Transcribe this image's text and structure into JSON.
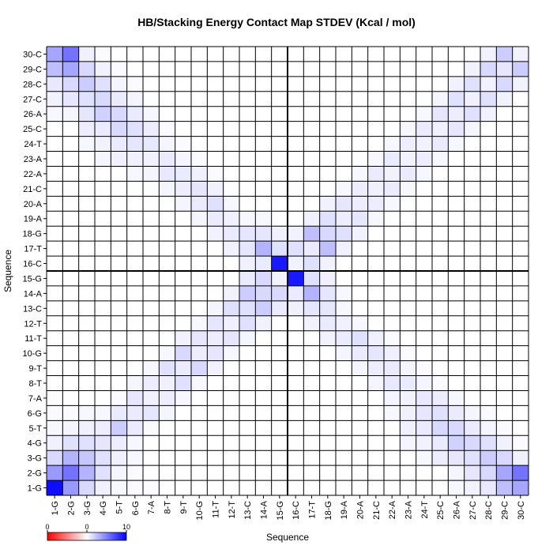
{
  "chart_data": {
    "type": "heatmap",
    "title": "HB/Stacking Energy Contact Map STDEV (Kcal / mol)",
    "xlabel": "Sequence",
    "ylabel": "Sequence",
    "labels": [
      "1-G",
      "2-G",
      "3-G",
      "4-G",
      "5-T",
      "6-G",
      "7-A",
      "8-T",
      "9-T",
      "10-G",
      "11-T",
      "12-T",
      "13-C",
      "14-A",
      "15-G",
      "16-C",
      "17-T",
      "18-G",
      "19-A",
      "20-A",
      "21-C",
      "22-A",
      "23-A",
      "24-T",
      "25-C",
      "26-A",
      "27-C",
      "28-C",
      "29-C",
      "30-C"
    ],
    "colorbar": {
      "min": 0,
      "mid": 0,
      "max": 10,
      "tick_labels": [
        "0",
        "0",
        "10"
      ],
      "colors": [
        "#ff0000",
        "#ffffff",
        "#0000ff"
      ]
    },
    "divider_after_index": 15,
    "grid": true,
    "cells": [
      [
        1,
        1,
        9.5
      ],
      [
        1,
        2,
        4.0
      ],
      [
        1,
        3,
        1.5
      ],
      [
        1,
        4,
        0.6
      ],
      [
        1,
        5,
        0.3
      ],
      [
        1,
        6,
        0.2
      ],
      [
        1,
        7,
        0.1
      ],
      [
        1,
        26,
        0.3
      ],
      [
        1,
        27,
        0.5
      ],
      [
        1,
        28,
        0.9
      ],
      [
        1,
        29,
        2.5
      ],
      [
        1,
        30,
        3.5
      ],
      [
        2,
        2,
        5.5
      ],
      [
        2,
        3,
        3.0
      ],
      [
        2,
        4,
        1.2
      ],
      [
        2,
        5,
        0.4
      ],
      [
        2,
        6,
        0.2
      ],
      [
        2,
        26,
        0.4
      ],
      [
        2,
        27,
        1.0
      ],
      [
        2,
        28,
        1.5
      ],
      [
        2,
        29,
        3.5
      ],
      [
        2,
        30,
        5.5
      ],
      [
        3,
        3,
        2.2
      ],
      [
        3,
        4,
        1.2
      ],
      [
        3,
        5,
        0.6
      ],
      [
        3,
        6,
        0.3
      ],
      [
        3,
        24,
        0.3
      ],
      [
        3,
        25,
        0.7
      ],
      [
        3,
        26,
        1.0
      ],
      [
        3,
        27,
        1.2
      ],
      [
        3,
        28,
        2.0
      ],
      [
        3,
        29,
        1.5
      ],
      [
        3,
        30,
        0.6
      ],
      [
        4,
        4,
        1.0
      ],
      [
        4,
        5,
        0.7
      ],
      [
        4,
        6,
        0.3
      ],
      [
        4,
        23,
        0.4
      ],
      [
        4,
        24,
        0.5
      ],
      [
        4,
        25,
        0.8
      ],
      [
        4,
        26,
        1.8
      ],
      [
        4,
        27,
        1.5
      ],
      [
        4,
        28,
        1.2
      ],
      [
        4,
        29,
        0.5
      ],
      [
        4,
        30,
        0.2
      ],
      [
        5,
        5,
        2.0
      ],
      [
        5,
        6,
        0.8
      ],
      [
        5,
        7,
        0.2
      ],
      [
        5,
        23,
        0.6
      ],
      [
        5,
        24,
        0.8
      ],
      [
        5,
        25,
        1.5
      ],
      [
        5,
        26,
        1.5
      ],
      [
        5,
        27,
        0.8
      ],
      [
        5,
        28,
        0.4
      ],
      [
        5,
        29,
        0.2
      ],
      [
        6,
        6,
        0.8
      ],
      [
        6,
        7,
        1.0
      ],
      [
        6,
        8,
        0.4
      ],
      [
        6,
        22,
        0.3
      ],
      [
        6,
        23,
        0.6
      ],
      [
        6,
        24,
        1.0
      ],
      [
        6,
        25,
        1.2
      ],
      [
        6,
        26,
        0.8
      ],
      [
        6,
        27,
        0.4
      ],
      [
        6,
        28,
        0.2
      ],
      [
        7,
        7,
        0.6
      ],
      [
        7,
        8,
        0.7
      ],
      [
        7,
        9,
        0.3
      ],
      [
        7,
        22,
        0.4
      ],
      [
        7,
        23,
        0.5
      ],
      [
        7,
        24,
        0.9
      ],
      [
        7,
        25,
        0.7
      ],
      [
        7,
        26,
        0.3
      ],
      [
        8,
        8,
        0.6
      ],
      [
        8,
        9,
        1.2
      ],
      [
        8,
        10,
        0.3
      ],
      [
        8,
        21,
        0.4
      ],
      [
        8,
        22,
        0.9
      ],
      [
        8,
        23,
        0.8
      ],
      [
        8,
        24,
        0.4
      ],
      [
        8,
        25,
        0.2
      ],
      [
        9,
        9,
        0.8
      ],
      [
        9,
        10,
        1.5
      ],
      [
        9,
        11,
        0.5
      ],
      [
        9,
        20,
        0.4
      ],
      [
        9,
        21,
        0.7
      ],
      [
        9,
        22,
        0.8
      ],
      [
        9,
        23,
        0.4
      ],
      [
        9,
        24,
        0.2
      ],
      [
        10,
        10,
        0.7
      ],
      [
        10,
        11,
        1.0
      ],
      [
        10,
        12,
        0.3
      ],
      [
        10,
        19,
        0.4
      ],
      [
        10,
        20,
        0.8
      ],
      [
        10,
        21,
        1.0
      ],
      [
        10,
        22,
        0.6
      ],
      [
        10,
        23,
        0.2
      ],
      [
        11,
        11,
        0.7
      ],
      [
        11,
        12,
        1.0
      ],
      [
        11,
        13,
        0.4
      ],
      [
        11,
        18,
        0.5
      ],
      [
        11,
        19,
        0.8
      ],
      [
        11,
        20,
        1.2
      ],
      [
        11,
        21,
        0.6
      ],
      [
        11,
        22,
        0.2
      ],
      [
        12,
        12,
        0.6
      ],
      [
        12,
        13,
        1.2
      ],
      [
        12,
        14,
        0.5
      ],
      [
        12,
        17,
        0.5
      ],
      [
        12,
        18,
        0.8
      ],
      [
        12,
        19,
        0.6
      ],
      [
        12,
        20,
        0.3
      ],
      [
        13,
        13,
        1.2
      ],
      [
        13,
        14,
        2.0
      ],
      [
        13,
        15,
        0.8
      ],
      [
        13,
        16,
        0.6
      ],
      [
        13,
        17,
        1.0
      ],
      [
        13,
        18,
        1.0
      ],
      [
        13,
        19,
        0.3
      ],
      [
        14,
        14,
        1.5
      ],
      [
        14,
        15,
        1.5
      ],
      [
        14,
        16,
        0.8
      ],
      [
        14,
        17,
        3.0
      ],
      [
        14,
        18,
        1.0
      ],
      [
        14,
        19,
        0.3
      ],
      [
        15,
        15,
        0.5
      ],
      [
        15,
        16,
        9.0
      ],
      [
        15,
        17,
        1.2
      ],
      [
        15,
        18,
        0.6
      ],
      [
        16,
        16,
        0.5
      ],
      [
        16,
        17,
        1.2
      ],
      [
        16,
        18,
        0.5
      ],
      [
        17,
        17,
        0.8
      ],
      [
        17,
        18,
        2.5
      ],
      [
        17,
        19,
        0.6
      ],
      [
        18,
        18,
        1.5
      ],
      [
        18,
        19,
        1.2
      ],
      [
        18,
        20,
        0.5
      ],
      [
        19,
        19,
        0.7
      ],
      [
        19,
        20,
        1.0
      ],
      [
        19,
        21,
        0.3
      ],
      [
        20,
        20,
        0.7
      ],
      [
        20,
        21,
        0.7
      ],
      [
        20,
        22,
        0.3
      ],
      [
        21,
        21,
        0.6
      ],
      [
        21,
        22,
        0.8
      ],
      [
        21,
        23,
        0.3
      ],
      [
        22,
        22,
        0.5
      ],
      [
        22,
        23,
        0.8
      ],
      [
        22,
        24,
        0.3
      ],
      [
        23,
        23,
        0.5
      ],
      [
        23,
        24,
        0.7
      ],
      [
        23,
        25,
        0.3
      ],
      [
        24,
        24,
        0.5
      ],
      [
        24,
        25,
        0.8
      ],
      [
        24,
        26,
        0.3
      ],
      [
        25,
        25,
        0.6
      ],
      [
        25,
        26,
        1.0
      ],
      [
        25,
        27,
        0.4
      ],
      [
        26,
        26,
        0.7
      ],
      [
        26,
        27,
        1.2
      ],
      [
        26,
        28,
        0.5
      ],
      [
        27,
        27,
        0.6
      ],
      [
        27,
        28,
        1.2
      ],
      [
        27,
        29,
        0.5
      ],
      [
        28,
        28,
        0.5
      ],
      [
        28,
        29,
        1.5
      ],
      [
        28,
        30,
        0.5
      ],
      [
        29,
        29,
        1.0
      ],
      [
        29,
        30,
        2.0
      ],
      [
        30,
        30,
        0.5
      ]
    ]
  }
}
